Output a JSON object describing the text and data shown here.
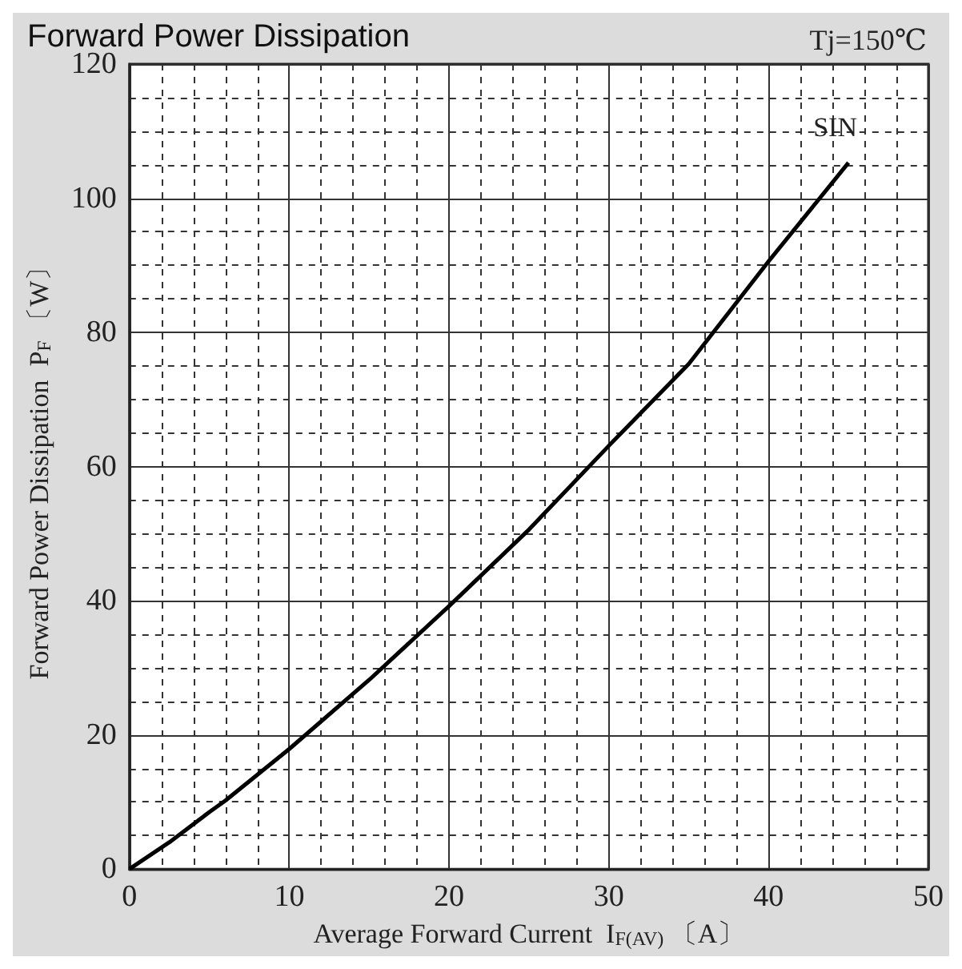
{
  "chart_data": {
    "type": "line",
    "title": "Forward Power Dissipation",
    "xlabel": "Average Forward Current  I$_{F(AV)}$ 〔A〕",
    "ylabel": "Forward Power Dissipation  P$_{F}$ 〔W〕",
    "annotations": [
      "Tj=150℃"
    ],
    "series": [
      {
        "name": "SIN",
        "color": "#000000",
        "x": [
          0,
          2.5,
          5,
          6,
          10,
          15,
          20,
          25,
          30,
          35,
          40,
          45
        ],
        "values": [
          0,
          4,
          8.5,
          10.2,
          17.9,
          28.2,
          39.2,
          50.6,
          63.1,
          75.3,
          90.6,
          105.3
        ]
      }
    ],
    "xlim": [
      0,
      50
    ],
    "xticks": [
      0,
      10,
      20,
      30,
      40,
      50
    ],
    "ylim": [
      0,
      120
    ],
    "yticks": [
      0,
      20,
      40,
      60,
      80,
      100,
      120
    ],
    "grid": true,
    "legend": false,
    "marker": "none",
    "line_style": "solid"
  }
}
